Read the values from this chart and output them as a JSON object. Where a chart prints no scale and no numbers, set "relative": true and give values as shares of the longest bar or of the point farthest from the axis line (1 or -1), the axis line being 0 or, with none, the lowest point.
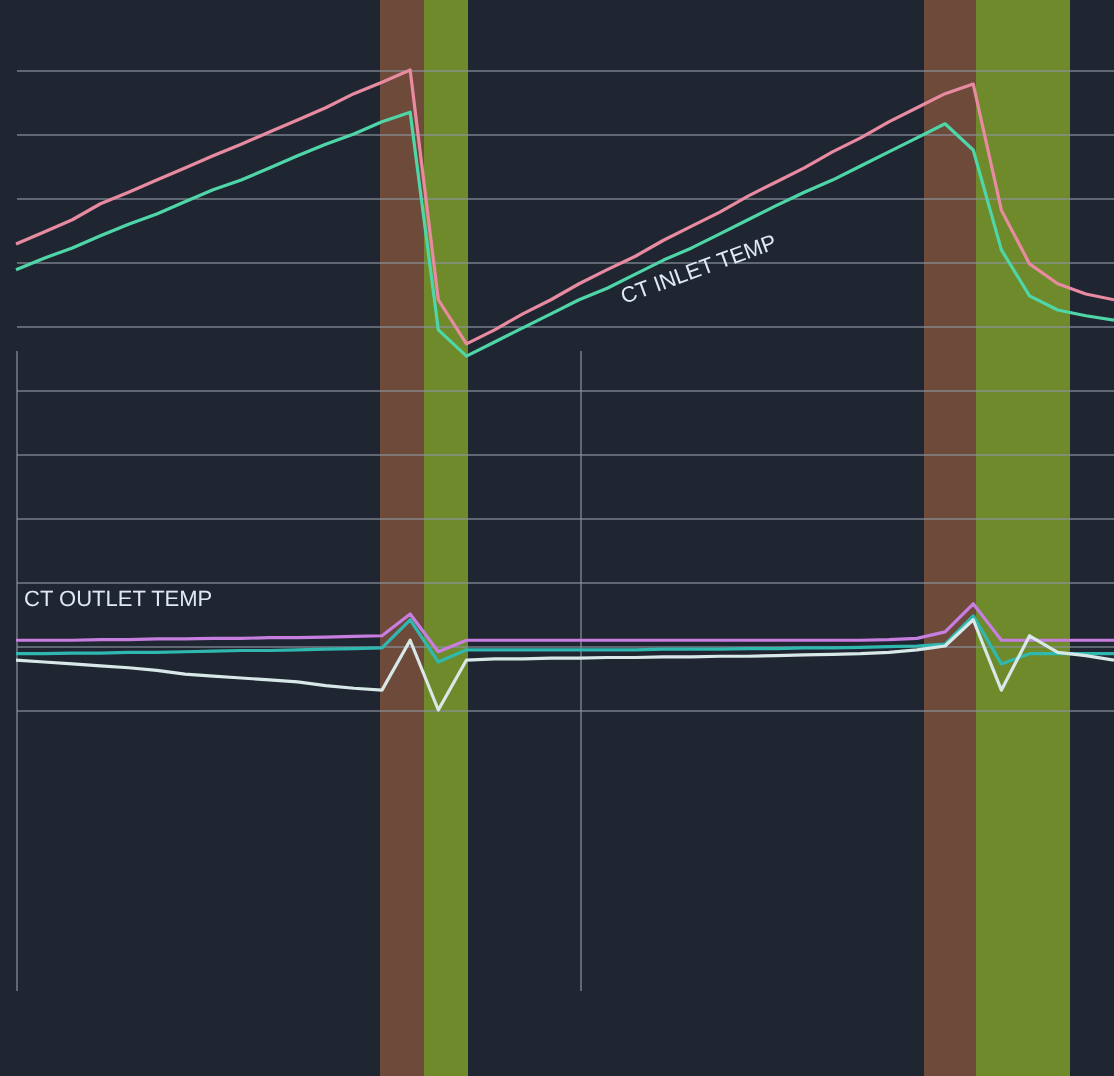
{
  "chart_data": {
    "type": "line",
    "relative": true,
    "grid": true,
    "categories": [
      null,
      null,
      null,
      null,
      null,
      null,
      null,
      null,
      null,
      null,
      null,
      null,
      null,
      null,
      null,
      null,
      null,
      null,
      null,
      null,
      null,
      null,
      null,
      null,
      null,
      null,
      null,
      null,
      null,
      null,
      null,
      null,
      null,
      null,
      null,
      null,
      null,
      null,
      null,
      null
    ],
    "series": [
      {
        "color": "#e88aa0",
        "values": [
          0.728,
          0.747,
          0.766,
          0.791,
          0.809,
          0.828,
          0.847,
          0.866,
          0.884,
          0.903,
          0.922,
          0.941,
          0.963,
          0.981,
          1,
          0.641,
          0.572,
          0.594,
          0.619,
          0.641,
          0.666,
          0.688,
          0.709,
          0.734,
          0.756,
          0.778,
          0.803,
          0.825,
          0.847,
          0.872,
          0.894,
          0.919,
          0.941,
          0.963,
          0.978,
          0.781,
          0.697,
          0.666,
          0.65,
          0.641
        ]
      },
      {
        "color": "#4fd6a8",
        "values": [
          0.688,
          0.706,
          0.722,
          0.741,
          0.759,
          0.775,
          0.794,
          0.813,
          0.828,
          0.847,
          0.866,
          0.884,
          0.9,
          0.919,
          0.934,
          0.594,
          0.553,
          0.575,
          0.597,
          0.619,
          0.641,
          0.659,
          0.681,
          0.703,
          0.722,
          0.744,
          0.766,
          0.788,
          0.809,
          0.828,
          0.85,
          0.872,
          0.894,
          0.916,
          0.875,
          0.719,
          0.647,
          0.625,
          0.616,
          0.609
        ]
      },
      {
        "color": "#c77ee0",
        "values": [
          0.109,
          0.109,
          0.109,
          0.11,
          0.11,
          0.111,
          0.111,
          0.112,
          0.112,
          0.113,
          0.113,
          0.114,
          0.115,
          0.116,
          0.15,
          0.091,
          0.109,
          0.109,
          0.109,
          0.109,
          0.109,
          0.109,
          0.109,
          0.109,
          0.109,
          0.109,
          0.109,
          0.109,
          0.109,
          0.109,
          0.109,
          0.11,
          0.112,
          0.122,
          0.166,
          0.109,
          0.109,
          0.109,
          0.109,
          0.109
        ]
      },
      {
        "color": "#2fb8b0",
        "values": [
          0.088,
          0.088,
          0.089,
          0.089,
          0.09,
          0.09,
          0.091,
          0.092,
          0.093,
          0.093,
          0.094,
          0.095,
          0.096,
          0.097,
          0.141,
          0.075,
          0.094,
          0.094,
          0.094,
          0.094,
          0.094,
          0.094,
          0.094,
          0.095,
          0.095,
          0.095,
          0.096,
          0.096,
          0.097,
          0.097,
          0.098,
          0.099,
          0.1,
          0.103,
          0.147,
          0.072,
          0.088,
          0.088,
          0.088,
          0.088
        ]
      },
      {
        "color": "#d8e8e8",
        "values": [
          0.078,
          0.075,
          0.072,
          0.069,
          0.066,
          0.062,
          0.056,
          0.053,
          0.05,
          0.047,
          0.044,
          0.038,
          0.034,
          0.031,
          0.109,
          0,
          0.078,
          0.08,
          0.08,
          0.081,
          0.081,
          0.082,
          0.082,
          0.083,
          0.083,
          0.084,
          0.084,
          0.085,
          0.086,
          0.087,
          0.088,
          0.09,
          0.094,
          0.1,
          0.141,
          0.031,
          0.116,
          0.09,
          0.085,
          0.078
        ]
      }
    ],
    "annotations": [
      "CT INLET TEMP",
      "CT OUTLET TEMP"
    ]
  }
}
